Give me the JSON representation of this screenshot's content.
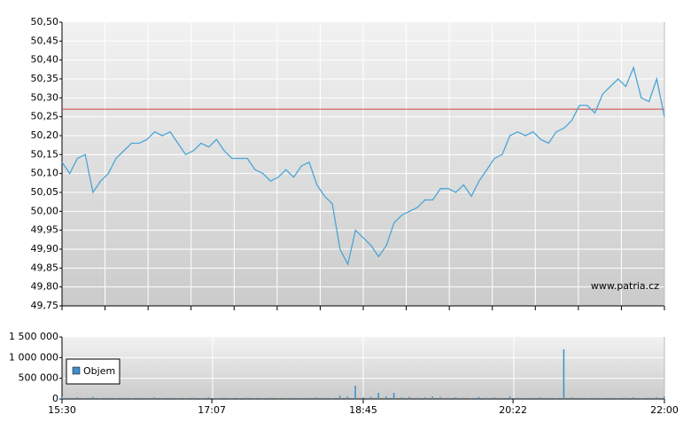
{
  "chart_data": [
    {
      "type": "line",
      "color": "#4aa6d6",
      "x": [
        "15:30",
        "15:35",
        "15:40",
        "15:45",
        "15:50",
        "15:55",
        "16:00",
        "16:05",
        "16:10",
        "16:15",
        "16:20",
        "16:25",
        "16:30",
        "16:35",
        "16:40",
        "16:45",
        "16:50",
        "16:55",
        "17:00",
        "17:05",
        "17:10",
        "17:15",
        "17:20",
        "17:25",
        "17:30",
        "17:35",
        "17:40",
        "17:45",
        "17:50",
        "17:55",
        "18:00",
        "18:05",
        "18:10",
        "18:15",
        "18:20",
        "18:25",
        "18:30",
        "18:35",
        "18:40",
        "18:45",
        "18:50",
        "18:55",
        "19:00",
        "19:05",
        "19:10",
        "19:15",
        "19:20",
        "19:25",
        "19:30",
        "19:35",
        "19:40",
        "19:45",
        "19:50",
        "19:55",
        "20:00",
        "20:05",
        "20:10",
        "20:15",
        "20:20",
        "20:25",
        "20:30",
        "20:35",
        "20:40",
        "20:45",
        "20:50",
        "20:55",
        "21:00",
        "21:05",
        "21:10",
        "21:15",
        "21:20",
        "21:25",
        "21:30",
        "21:35",
        "21:40",
        "21:45",
        "21:50",
        "21:55",
        "22:00"
      ],
      "values": [
        50.13,
        50.1,
        50.14,
        50.15,
        50.05,
        50.08,
        50.1,
        50.14,
        50.16,
        50.18,
        50.18,
        50.19,
        50.21,
        50.2,
        50.21,
        50.18,
        50.15,
        50.16,
        50.18,
        50.17,
        50.19,
        50.16,
        50.14,
        50.14,
        50.14,
        50.11,
        50.1,
        50.08,
        50.09,
        50.11,
        50.09,
        50.12,
        50.13,
        50.07,
        50.04,
        50.02,
        49.9,
        49.86,
        49.95,
        49.93,
        49.91,
        49.88,
        49.91,
        49.97,
        49.99,
        50.0,
        50.01,
        50.03,
        50.03,
        50.06,
        50.06,
        50.05,
        50.07,
        50.04,
        50.08,
        50.11,
        50.14,
        50.15,
        50.2,
        50.21,
        50.2,
        50.21,
        50.19,
        50.18,
        50.21,
        50.22,
        50.24,
        50.28,
        50.28,
        50.26,
        50.31,
        50.33,
        50.35,
        50.33,
        50.38,
        50.3,
        50.29,
        50.35,
        50.25
      ],
      "xlim": [
        "15:30",
        "22:00"
      ],
      "ylim": [
        49.75,
        50.5
      ],
      "yticks": [
        {
          "value": 50.5,
          "label": "50,50"
        },
        {
          "value": 50.45,
          "label": "50,45"
        },
        {
          "value": 50.4,
          "label": "50,40"
        },
        {
          "value": 50.35,
          "label": "50,35"
        },
        {
          "value": 50.3,
          "label": "50,30"
        },
        {
          "value": 50.25,
          "label": "50,25"
        },
        {
          "value": 50.2,
          "label": "50,20"
        },
        {
          "value": 50.15,
          "label": "50,15"
        },
        {
          "value": 50.1,
          "label": "50,10"
        },
        {
          "value": 50.05,
          "label": "50,05"
        },
        {
          "value": 50,
          "label": "50,00"
        },
        {
          "value": 49.95,
          "label": "49,95"
        },
        {
          "value": 49.9,
          "label": "49,90"
        },
        {
          "value": 49.85,
          "label": "49,85"
        },
        {
          "value": 49.8,
          "label": "49,80"
        },
        {
          "value": 49.75,
          "label": "49,75"
        }
      ],
      "reference_line": {
        "value": 50.27,
        "color": "#d04040"
      },
      "annotation": "www.patria.cz",
      "grid": true
    },
    {
      "type": "bar",
      "name": "Objem",
      "color": "#3d8fc7",
      "legend": "left",
      "x": [
        "15:30",
        "15:35",
        "15:40",
        "15:45",
        "15:50",
        "15:55",
        "16:00",
        "16:05",
        "16:10",
        "16:15",
        "16:20",
        "16:25",
        "16:30",
        "16:35",
        "16:40",
        "16:45",
        "16:50",
        "16:55",
        "17:00",
        "17:05",
        "17:10",
        "17:15",
        "17:20",
        "17:25",
        "17:30",
        "17:35",
        "17:40",
        "17:45",
        "17:50",
        "17:55",
        "18:00",
        "18:05",
        "18:10",
        "18:15",
        "18:20",
        "18:25",
        "18:30",
        "18:35",
        "18:40",
        "18:45",
        "18:50",
        "18:55",
        "19:00",
        "19:05",
        "19:10",
        "19:15",
        "19:20",
        "19:25",
        "19:30",
        "19:35",
        "19:40",
        "19:45",
        "19:50",
        "19:55",
        "20:00",
        "20:05",
        "20:10",
        "20:15",
        "20:20",
        "20:25",
        "20:30",
        "20:35",
        "20:40",
        "20:45",
        "20:50",
        "20:55",
        "21:00",
        "21:05",
        "21:10",
        "21:15",
        "21:20",
        "21:25",
        "21:30",
        "21:35",
        "21:40",
        "21:45",
        "21:50",
        "21:55",
        "22:00"
      ],
      "values": [
        60000,
        30000,
        40000,
        20000,
        50000,
        20000,
        30000,
        20000,
        30000,
        20000,
        30000,
        20000,
        40000,
        20000,
        30000,
        20000,
        20000,
        30000,
        20000,
        40000,
        20000,
        30000,
        20000,
        20000,
        30000,
        20000,
        20000,
        30000,
        20000,
        20000,
        30000,
        20000,
        30000,
        40000,
        30000,
        20000,
        80000,
        60000,
        320000,
        40000,
        50000,
        150000,
        60000,
        150000,
        40000,
        50000,
        30000,
        40000,
        60000,
        50000,
        30000,
        40000,
        30000,
        20000,
        50000,
        30000,
        40000,
        30000,
        60000,
        30000,
        20000,
        30000,
        40000,
        30000,
        20000,
        1200000,
        40000,
        30000,
        20000,
        30000,
        20000,
        30000,
        20000,
        30000,
        40000,
        20000,
        30000,
        40000,
        60000
      ],
      "xlim": [
        "15:30",
        "22:00"
      ],
      "xticks": [
        "15:30",
        "17:07",
        "18:45",
        "20:22",
        "22:00"
      ],
      "ylim": [
        0,
        1500000
      ],
      "yticks": [
        {
          "value": 1500000,
          "label": "1 500 000"
        },
        {
          "value": 1000000,
          "label": "1 000 000"
        },
        {
          "value": 500000,
          "label": "500 000"
        },
        0
      ],
      "grid": true
    }
  ]
}
